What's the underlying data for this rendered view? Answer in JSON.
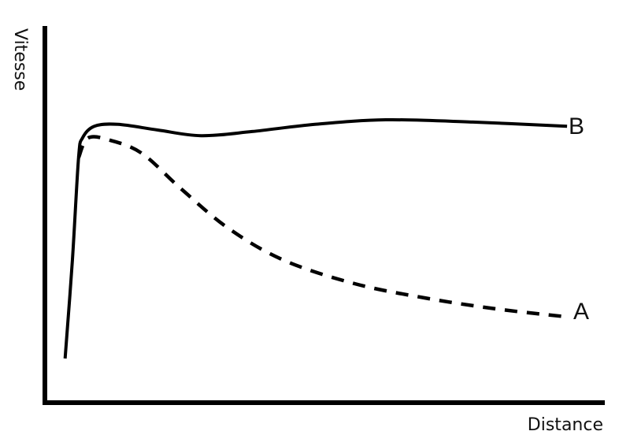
{
  "chart_data": {
    "type": "line",
    "title": "",
    "xlabel": "Distance",
    "ylabel": "Vitesse",
    "xlim": [
      0,
      100
    ],
    "ylim": [
      0,
      100
    ],
    "grid": false,
    "ticks": false,
    "legend": "inline labels at line ends",
    "series": [
      {
        "name": "B",
        "style": "solid",
        "color": "#000000",
        "x": [
          3.6,
          4.9,
          6.0,
          6.7,
          8.8,
          13.0,
          20.1,
          27.8,
          36.9,
          48.1,
          60.7,
          76.2,
          93.0
        ],
        "y": [
          12.1,
          38.1,
          65.2,
          70.4,
          73.5,
          74.0,
          72.5,
          71.0,
          72.1,
          74.0,
          75.2,
          74.6,
          73.5
        ]
      },
      {
        "name": "A",
        "style": "dashed",
        "color": "#000000",
        "x": [
          6.0,
          7.7,
          11.6,
          17.3,
          24.3,
          32.7,
          42.5,
          55.1,
          67.7,
          80.4,
          93.0
        ],
        "y": [
          65.2,
          70.4,
          69.8,
          66.3,
          56.9,
          46.5,
          38.1,
          31.9,
          28.1,
          25.2,
          23.1
        ]
      }
    ]
  }
}
